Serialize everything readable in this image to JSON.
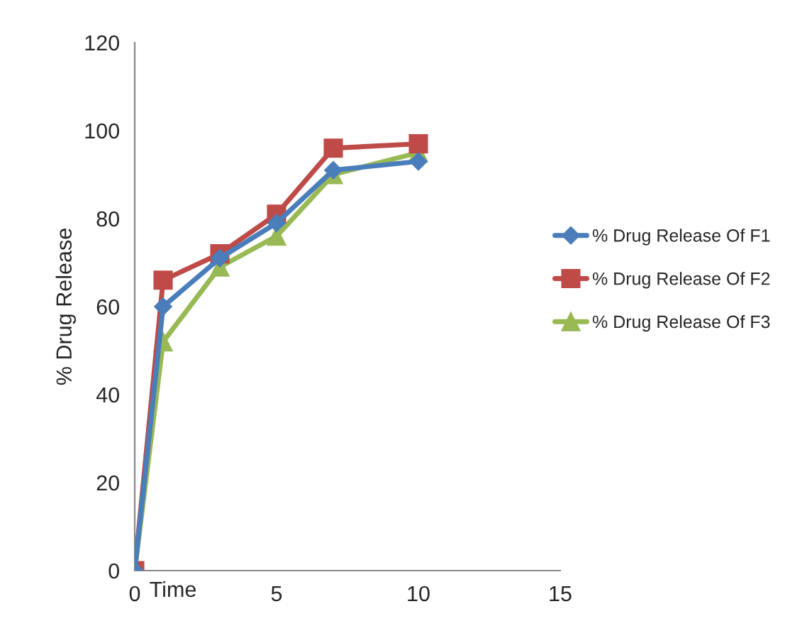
{
  "chart_data": {
    "type": "line",
    "xlabel": "Time",
    "ylabel": "% Drug Release",
    "x": [
      0,
      1,
      3,
      5,
      7,
      10
    ],
    "series": [
      {
        "name": "% Drug Release Of F1",
        "color": "#4a7ebb",
        "marker": "diamond",
        "values": [
          0,
          60,
          71,
          79,
          91,
          93
        ]
      },
      {
        "name": "% Drug Release Of F2",
        "color": "#be4b48",
        "marker": "square",
        "values": [
          0,
          66,
          72,
          81,
          96,
          97
        ]
      },
      {
        "name": "% Drug Release Of F3",
        "color": "#98b954",
        "marker": "triangle",
        "values": [
          0,
          52,
          69,
          76,
          90,
          95
        ]
      }
    ],
    "xlim": [
      0,
      15
    ],
    "xticks": [
      0,
      5,
      10,
      15
    ],
    "ylim": [
      0,
      120
    ],
    "yticks": [
      0,
      20,
      40,
      60,
      80,
      100,
      120
    ],
    "grid": false,
    "legend": "right",
    "line_style": "solid"
  }
}
